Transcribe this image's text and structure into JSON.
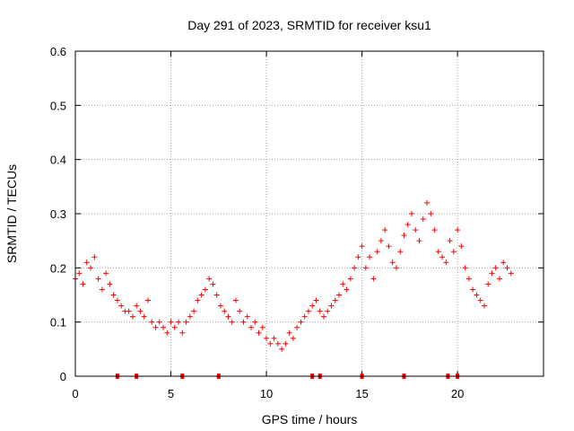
{
  "chart_data": {
    "type": "scatter",
    "title": "Day 291 of 2023, SRMTID for receiver ksu1",
    "xlabel": "GPS time / hours",
    "ylabel": "SRMTID / TECUs",
    "xlim": [
      0,
      24.5
    ],
    "ylim": [
      0,
      0.6
    ],
    "xticks": [
      "0",
      "5",
      "10",
      "15",
      "20"
    ],
    "xtick_values": [
      0,
      5,
      10,
      15,
      20
    ],
    "yticks": [
      "0",
      "0.1",
      "0.2",
      "0.3",
      "0.4",
      "0.5",
      "0.6"
    ],
    "ytick_values": [
      0,
      0.1,
      0.2,
      0.3,
      0.4,
      0.5,
      0.6
    ],
    "grid": true,
    "marker": "+",
    "color": "#ff0000",
    "series": [
      {
        "name": "SRMTID",
        "x": [
          0.0,
          0.2,
          0.4,
          0.6,
          0.8,
          1.0,
          1.2,
          1.4,
          1.6,
          1.8,
          2.0,
          2.2,
          2.4,
          2.6,
          2.8,
          3.0,
          3.2,
          3.4,
          3.6,
          3.8,
          4.0,
          4.2,
          4.4,
          4.6,
          4.8,
          5.0,
          5.2,
          5.4,
          5.6,
          5.8,
          6.0,
          6.2,
          6.4,
          6.6,
          6.8,
          7.0,
          7.2,
          7.4,
          7.6,
          7.8,
          8.0,
          8.2,
          8.4,
          8.6,
          8.8,
          9.0,
          9.2,
          9.4,
          9.6,
          9.8,
          10.0,
          10.2,
          10.4,
          10.6,
          10.8,
          11.0,
          11.2,
          11.4,
          11.6,
          11.8,
          12.0,
          12.2,
          12.4,
          12.6,
          12.8,
          13.0,
          13.2,
          13.4,
          13.6,
          13.8,
          14.0,
          14.2,
          14.4,
          14.6,
          14.8,
          15.0,
          15.2,
          15.4,
          15.6,
          15.8,
          16.0,
          16.2,
          16.4,
          16.6,
          16.8,
          17.0,
          17.2,
          17.4,
          17.6,
          17.8,
          18.0,
          18.2,
          18.4,
          18.6,
          18.8,
          19.0,
          19.2,
          19.4,
          19.6,
          19.8,
          20.0,
          20.2,
          20.4,
          20.6,
          20.8,
          21.0,
          21.2,
          21.4,
          21.6,
          21.8,
          22.0,
          22.2,
          22.4,
          22.6,
          22.8
        ],
        "y": [
          0.18,
          0.19,
          0.17,
          0.21,
          0.2,
          0.22,
          0.18,
          0.16,
          0.19,
          0.17,
          0.15,
          0.14,
          0.13,
          0.12,
          0.12,
          0.11,
          0.13,
          0.12,
          0.11,
          0.14,
          0.1,
          0.09,
          0.1,
          0.09,
          0.08,
          0.1,
          0.09,
          0.1,
          0.08,
          0.1,
          0.11,
          0.12,
          0.14,
          0.15,
          0.16,
          0.18,
          0.17,
          0.15,
          0.13,
          0.12,
          0.11,
          0.1,
          0.14,
          0.12,
          0.1,
          0.11,
          0.09,
          0.1,
          0.08,
          0.09,
          0.07,
          0.06,
          0.07,
          0.06,
          0.05,
          0.06,
          0.08,
          0.07,
          0.09,
          0.1,
          0.11,
          0.12,
          0.13,
          0.14,
          0.12,
          0.11,
          0.12,
          0.13,
          0.14,
          0.15,
          0.17,
          0.16,
          0.18,
          0.2,
          0.22,
          0.24,
          0.2,
          0.22,
          0.18,
          0.23,
          0.25,
          0.27,
          0.24,
          0.21,
          0.2,
          0.23,
          0.26,
          0.28,
          0.3,
          0.27,
          0.25,
          0.29,
          0.32,
          0.3,
          0.27,
          0.23,
          0.22,
          0.21,
          0.25,
          0.23,
          0.27,
          0.24,
          0.2,
          0.18,
          0.16,
          0.15,
          0.14,
          0.13,
          0.17,
          0.19,
          0.2,
          0.18,
          0.21,
          0.2,
          0.19
        ]
      }
    ],
    "gap_markers_x": [
      2.2,
      3.2,
      5.6,
      7.5,
      12.4,
      12.8,
      15.0,
      17.2,
      19.5,
      20.0
    ]
  }
}
